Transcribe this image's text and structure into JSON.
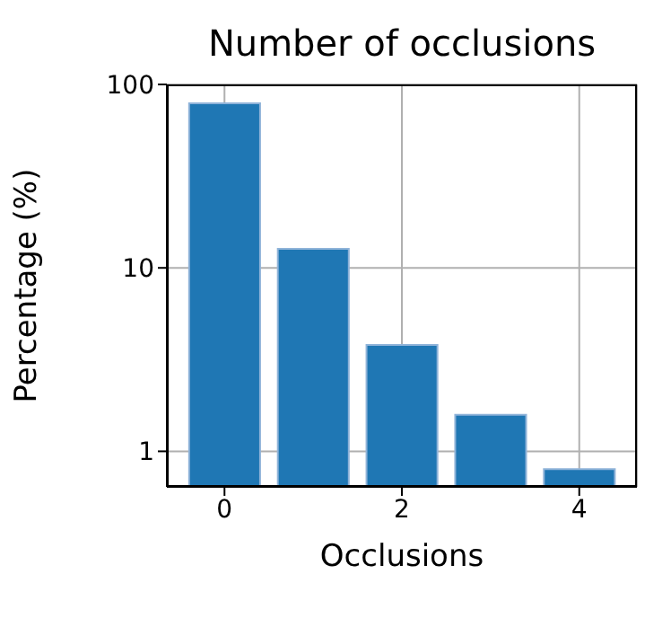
{
  "chart_data": {
    "type": "bar",
    "title": "Number of occlusions",
    "xlabel": "Occlusions",
    "ylabel": "Percentage (%)",
    "x": [
      0,
      1,
      2,
      3,
      4
    ],
    "values": [
      79,
      12.7,
      3.8,
      1.58,
      0.8
    ],
    "color": "#1f77b4",
    "xlim": [
      -0.65,
      4.65
    ],
    "xticks": [
      0,
      2,
      4
    ],
    "ylim": [
      0.64,
      100
    ],
    "yticks": [
      1,
      10,
      100
    ],
    "log": true,
    "grid": true
  }
}
